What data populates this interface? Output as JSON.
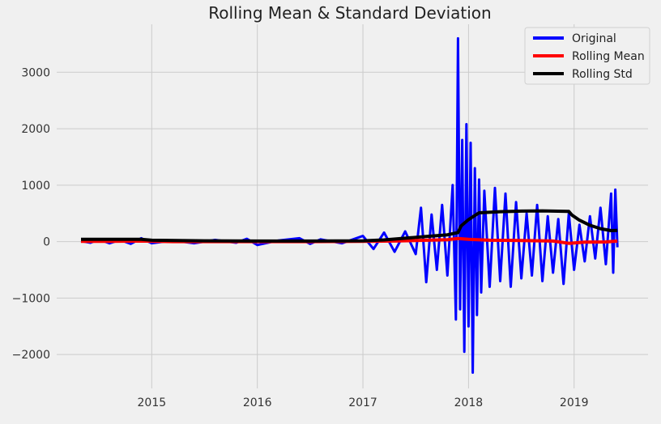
{
  "chart_data": {
    "type": "line",
    "title": "Rolling Mean & Standard Deviation",
    "xlabel": "",
    "ylabel": "",
    "x_unit": "year",
    "xlim": [
      2014.1,
      2019.7
    ],
    "ylim": [
      -2600,
      3850
    ],
    "x_ticks": [
      2015,
      2016,
      2017,
      2018,
      2019
    ],
    "x_tick_labels": [
      "2015",
      "2016",
      "2017",
      "2018",
      "2019"
    ],
    "y_ticks": [
      -2000,
      -1000,
      0,
      1000,
      2000,
      3000
    ],
    "y_tick_labels": [
      "−2000",
      "−1000",
      "0",
      "1000",
      "2000",
      "3000"
    ],
    "grid": true,
    "legend_position": "top-right",
    "colors": {
      "background": "#f0f0f0",
      "grid": "#cbcbcb",
      "original": "#0000ff",
      "rolling_mean": "#ff0000",
      "rolling_std": "#000000"
    },
    "series": [
      {
        "name": "Original",
        "color": "#0000ff",
        "x": [
          2014.33,
          2014.42,
          2014.5,
          2014.6,
          2014.7,
          2014.8,
          2014.9,
          2015.0,
          2015.2,
          2015.4,
          2015.6,
          2015.8,
          2015.9,
          2016.0,
          2016.2,
          2016.4,
          2016.5,
          2016.6,
          2016.8,
          2017.0,
          2017.1,
          2017.2,
          2017.3,
          2017.4,
          2017.5,
          2017.55,
          2017.6,
          2017.65,
          2017.7,
          2017.75,
          2017.8,
          2017.85,
          2017.88,
          2017.9,
          2017.92,
          2017.94,
          2017.96,
          2017.98,
          2018.0,
          2018.02,
          2018.04,
          2018.06,
          2018.08,
          2018.1,
          2018.12,
          2018.15,
          2018.2,
          2018.25,
          2018.3,
          2018.35,
          2018.4,
          2018.45,
          2018.5,
          2018.55,
          2018.6,
          2018.65,
          2018.7,
          2018.75,
          2018.8,
          2018.85,
          2018.9,
          2018.95,
          2019.0,
          2019.05,
          2019.1,
          2019.15,
          2019.2,
          2019.25,
          2019.3,
          2019.35,
          2019.37,
          2019.39,
          2019.41
        ],
        "values": [
          10,
          -20,
          40,
          -30,
          30,
          -40,
          60,
          -30,
          20,
          -30,
          30,
          -20,
          50,
          -60,
          20,
          60,
          -40,
          40,
          -30,
          100,
          -130,
          160,
          -180,
          180,
          -220,
          600,
          -720,
          480,
          -500,
          650,
          -600,
          1000,
          -1380,
          3600,
          -1200,
          1800,
          -1950,
          2080,
          -1500,
          1750,
          -2320,
          1300,
          -1300,
          1100,
          -900,
          900,
          -800,
          950,
          -700,
          850,
          -800,
          700,
          -650,
          500,
          -600,
          650,
          -700,
          450,
          -550,
          400,
          -750,
          500,
          -500,
          300,
          -350,
          450,
          -300,
          600,
          -400,
          850,
          -550,
          920,
          -100
        ],
        "values_note": ""
      },
      {
        "name": "Rolling Mean",
        "color": "#ff0000",
        "x": [
          2014.33,
          2014.6,
          2014.9,
          2015.2,
          2015.6,
          2016.0,
          2016.5,
          2017.0,
          2017.3,
          2017.6,
          2017.8,
          2017.9,
          2018.0,
          2018.2,
          2018.5,
          2018.8,
          2018.95,
          2019.1,
          2019.3,
          2019.41
        ],
        "values": [
          5,
          5,
          10,
          0,
          0,
          0,
          0,
          5,
          10,
          25,
          35,
          55,
          40,
          25,
          20,
          10,
          -30,
          -10,
          -5,
          10
        ]
      },
      {
        "name": "Rolling Std",
        "color": "#000000",
        "x": [
          2014.33,
          2014.7,
          2014.9,
          2015.0,
          2015.5,
          2016.0,
          2016.5,
          2017.0,
          2017.2,
          2017.4,
          2017.6,
          2017.8,
          2017.9,
          2017.93,
          2018.0,
          2018.05,
          2018.1,
          2018.3,
          2018.5,
          2018.7,
          2018.95,
          2018.98,
          2019.05,
          2019.15,
          2019.25,
          2019.35,
          2019.41
        ],
        "values": [
          40,
          40,
          40,
          25,
          15,
          10,
          10,
          15,
          30,
          60,
          90,
          120,
          160,
          280,
          390,
          450,
          510,
          530,
          540,
          545,
          535,
          470,
          380,
          290,
          230,
          195,
          200
        ]
      }
    ]
  }
}
